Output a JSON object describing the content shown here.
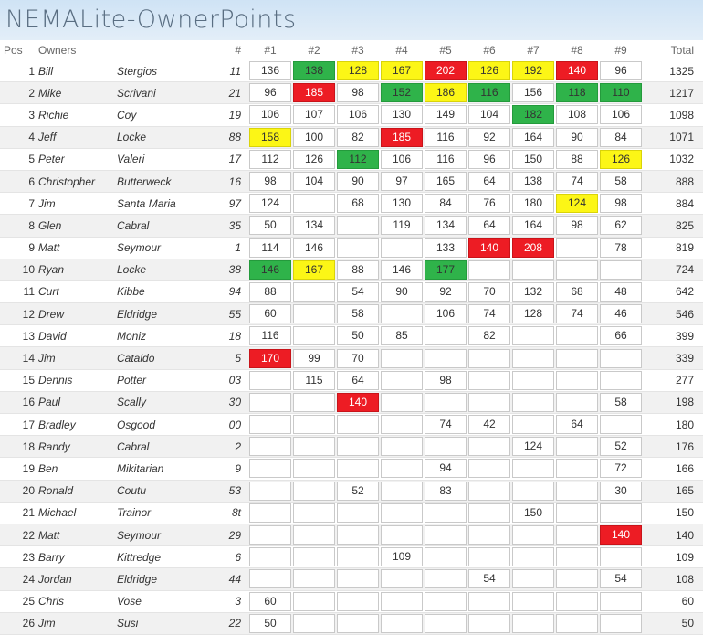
{
  "title": "NEMALite-OwnerPoints",
  "headers": {
    "pos": "Pos",
    "owners": "Owners",
    "num": "#",
    "races": [
      "#1",
      "#2",
      "#3",
      "#4",
      "#5",
      "#6",
      "#7",
      "#8",
      "#9"
    ],
    "total": "Total"
  },
  "colors": {
    "green": "#2fb34a",
    "yellow": "#fcf616",
    "red": "#ed1c24"
  },
  "rows": [
    {
      "pos": "1",
      "first": "Bill",
      "last": "Stergios",
      "num": "11",
      "races": [
        {
          "v": "136"
        },
        {
          "v": "138",
          "c": "green"
        },
        {
          "v": "128",
          "c": "yellow"
        },
        {
          "v": "167",
          "c": "yellow"
        },
        {
          "v": "202",
          "c": "red"
        },
        {
          "v": "126",
          "c": "yellow"
        },
        {
          "v": "192",
          "c": "yellow"
        },
        {
          "v": "140",
          "c": "red"
        },
        {
          "v": "96"
        }
      ],
      "total": "1325"
    },
    {
      "pos": "2",
      "first": "Mike",
      "last": "Scrivani",
      "num": "21",
      "races": [
        {
          "v": "96"
        },
        {
          "v": "185",
          "c": "red"
        },
        {
          "v": "98"
        },
        {
          "v": "152",
          "c": "green"
        },
        {
          "v": "186",
          "c": "yellow"
        },
        {
          "v": "116",
          "c": "green"
        },
        {
          "v": "156"
        },
        {
          "v": "118",
          "c": "green"
        },
        {
          "v": "110",
          "c": "green"
        }
      ],
      "total": "1217"
    },
    {
      "pos": "3",
      "first": "Richie",
      "last": "Coy",
      "num": "19",
      "races": [
        {
          "v": "106"
        },
        {
          "v": "107"
        },
        {
          "v": "106"
        },
        {
          "v": "130"
        },
        {
          "v": "149"
        },
        {
          "v": "104"
        },
        {
          "v": "182",
          "c": "green"
        },
        {
          "v": "108"
        },
        {
          "v": "106"
        }
      ],
      "total": "1098"
    },
    {
      "pos": "4",
      "first": "Jeff",
      "last": "Locke",
      "num": "88",
      "races": [
        {
          "v": "158",
          "c": "yellow"
        },
        {
          "v": "100"
        },
        {
          "v": "82"
        },
        {
          "v": "185",
          "c": "red"
        },
        {
          "v": "116"
        },
        {
          "v": "92"
        },
        {
          "v": "164"
        },
        {
          "v": "90"
        },
        {
          "v": "84"
        }
      ],
      "total": "1071"
    },
    {
      "pos": "5",
      "first": "Peter",
      "last": "Valeri",
      "num": "17",
      "races": [
        {
          "v": "112"
        },
        {
          "v": "126"
        },
        {
          "v": "112",
          "c": "green"
        },
        {
          "v": "106"
        },
        {
          "v": "116"
        },
        {
          "v": "96"
        },
        {
          "v": "150"
        },
        {
          "v": "88"
        },
        {
          "v": "126",
          "c": "yellow"
        }
      ],
      "total": "1032"
    },
    {
      "pos": "6",
      "first": "Christopher",
      "last": "Butterweck",
      "num": "16",
      "races": [
        {
          "v": "98"
        },
        {
          "v": "104"
        },
        {
          "v": "90"
        },
        {
          "v": "97"
        },
        {
          "v": "165"
        },
        {
          "v": "64"
        },
        {
          "v": "138"
        },
        {
          "v": "74"
        },
        {
          "v": "58"
        }
      ],
      "total": "888"
    },
    {
      "pos": "7",
      "first": "Jim",
      "last": "Santa Maria",
      "num": "97",
      "races": [
        {
          "v": "124"
        },
        {
          "v": ""
        },
        {
          "v": "68"
        },
        {
          "v": "130"
        },
        {
          "v": "84"
        },
        {
          "v": "76"
        },
        {
          "v": "180"
        },
        {
          "v": "124",
          "c": "yellow"
        },
        {
          "v": "98"
        }
      ],
      "total": "884"
    },
    {
      "pos": "8",
      "first": "Glen",
      "last": "Cabral",
      "num": "35",
      "races": [
        {
          "v": "50"
        },
        {
          "v": "134"
        },
        {
          "v": ""
        },
        {
          "v": "119"
        },
        {
          "v": "134"
        },
        {
          "v": "64"
        },
        {
          "v": "164"
        },
        {
          "v": "98"
        },
        {
          "v": "62"
        }
      ],
      "total": "825"
    },
    {
      "pos": "9",
      "first": "Matt",
      "last": "Seymour",
      "num": "1",
      "races": [
        {
          "v": "114"
        },
        {
          "v": "146"
        },
        {
          "v": ""
        },
        {
          "v": ""
        },
        {
          "v": "133"
        },
        {
          "v": "140",
          "c": "red"
        },
        {
          "v": "208",
          "c": "red"
        },
        {
          "v": ""
        },
        {
          "v": "78"
        }
      ],
      "total": "819"
    },
    {
      "pos": "10",
      "first": "Ryan",
      "last": "Locke",
      "num": "38",
      "races": [
        {
          "v": "146",
          "c": "green"
        },
        {
          "v": "167",
          "c": "yellow"
        },
        {
          "v": "88"
        },
        {
          "v": "146"
        },
        {
          "v": "177",
          "c": "green"
        },
        {
          "v": ""
        },
        {
          "v": ""
        },
        {
          "v": ""
        },
        {
          "v": ""
        }
      ],
      "total": "724"
    },
    {
      "pos": "11",
      "first": "Curt",
      "last": "Kibbe",
      "num": "94",
      "races": [
        {
          "v": "88"
        },
        {
          "v": ""
        },
        {
          "v": "54"
        },
        {
          "v": "90"
        },
        {
          "v": "92"
        },
        {
          "v": "70"
        },
        {
          "v": "132"
        },
        {
          "v": "68"
        },
        {
          "v": "48"
        }
      ],
      "total": "642"
    },
    {
      "pos": "12",
      "first": "Drew",
      "last": "Eldridge",
      "num": "55",
      "races": [
        {
          "v": "60"
        },
        {
          "v": ""
        },
        {
          "v": "58"
        },
        {
          "v": ""
        },
        {
          "v": "106"
        },
        {
          "v": "74"
        },
        {
          "v": "128"
        },
        {
          "v": "74"
        },
        {
          "v": "46"
        }
      ],
      "total": "546"
    },
    {
      "pos": "13",
      "first": "David",
      "last": "Moniz",
      "num": "18",
      "races": [
        {
          "v": "116"
        },
        {
          "v": ""
        },
        {
          "v": "50"
        },
        {
          "v": "85"
        },
        {
          "v": ""
        },
        {
          "v": "82"
        },
        {
          "v": ""
        },
        {
          "v": ""
        },
        {
          "v": "66"
        }
      ],
      "total": "399"
    },
    {
      "pos": "14",
      "first": "Jim",
      "last": "Cataldo",
      "num": "5",
      "races": [
        {
          "v": "170",
          "c": "red"
        },
        {
          "v": "99"
        },
        {
          "v": "70"
        },
        {
          "v": ""
        },
        {
          "v": ""
        },
        {
          "v": ""
        },
        {
          "v": ""
        },
        {
          "v": ""
        },
        {
          "v": ""
        }
      ],
      "total": "339"
    },
    {
      "pos": "15",
      "first": "Dennis",
      "last": "Potter",
      "num": "03",
      "races": [
        {
          "v": ""
        },
        {
          "v": "115"
        },
        {
          "v": "64"
        },
        {
          "v": ""
        },
        {
          "v": "98"
        },
        {
          "v": ""
        },
        {
          "v": ""
        },
        {
          "v": ""
        },
        {
          "v": ""
        }
      ],
      "total": "277"
    },
    {
      "pos": "16",
      "first": "Paul",
      "last": "Scally",
      "num": "30",
      "races": [
        {
          "v": ""
        },
        {
          "v": ""
        },
        {
          "v": "140",
          "c": "red"
        },
        {
          "v": ""
        },
        {
          "v": ""
        },
        {
          "v": ""
        },
        {
          "v": ""
        },
        {
          "v": ""
        },
        {
          "v": "58"
        }
      ],
      "total": "198"
    },
    {
      "pos": "17",
      "first": "Bradley",
      "last": "Osgood",
      "num": "00",
      "races": [
        {
          "v": ""
        },
        {
          "v": ""
        },
        {
          "v": ""
        },
        {
          "v": ""
        },
        {
          "v": "74"
        },
        {
          "v": "42"
        },
        {
          "v": ""
        },
        {
          "v": "64"
        },
        {
          "v": ""
        }
      ],
      "total": "180"
    },
    {
      "pos": "18",
      "first": "Randy",
      "last": "Cabral",
      "num": "2",
      "races": [
        {
          "v": ""
        },
        {
          "v": ""
        },
        {
          "v": ""
        },
        {
          "v": ""
        },
        {
          "v": ""
        },
        {
          "v": ""
        },
        {
          "v": "124"
        },
        {
          "v": ""
        },
        {
          "v": "52"
        }
      ],
      "total": "176"
    },
    {
      "pos": "19",
      "first": "Ben",
      "last": "Mikitarian",
      "num": "9",
      "races": [
        {
          "v": ""
        },
        {
          "v": ""
        },
        {
          "v": ""
        },
        {
          "v": ""
        },
        {
          "v": "94"
        },
        {
          "v": ""
        },
        {
          "v": ""
        },
        {
          "v": ""
        },
        {
          "v": "72"
        }
      ],
      "total": "166"
    },
    {
      "pos": "20",
      "first": "Ronald",
      "last": "Coutu",
      "num": "53",
      "races": [
        {
          "v": ""
        },
        {
          "v": ""
        },
        {
          "v": "52"
        },
        {
          "v": ""
        },
        {
          "v": "83"
        },
        {
          "v": ""
        },
        {
          "v": ""
        },
        {
          "v": ""
        },
        {
          "v": "30"
        }
      ],
      "total": "165"
    },
    {
      "pos": "21",
      "first": "Michael",
      "last": "Trainor",
      "num": "8t",
      "races": [
        {
          "v": ""
        },
        {
          "v": ""
        },
        {
          "v": ""
        },
        {
          "v": ""
        },
        {
          "v": ""
        },
        {
          "v": ""
        },
        {
          "v": "150"
        },
        {
          "v": ""
        },
        {
          "v": ""
        }
      ],
      "total": "150"
    },
    {
      "pos": "22",
      "first": "Matt",
      "last": "Seymour",
      "num": "29",
      "races": [
        {
          "v": ""
        },
        {
          "v": ""
        },
        {
          "v": ""
        },
        {
          "v": ""
        },
        {
          "v": ""
        },
        {
          "v": ""
        },
        {
          "v": ""
        },
        {
          "v": ""
        },
        {
          "v": "140",
          "c": "red"
        }
      ],
      "total": "140"
    },
    {
      "pos": "23",
      "first": "Barry",
      "last": "Kittredge",
      "num": "6",
      "races": [
        {
          "v": ""
        },
        {
          "v": ""
        },
        {
          "v": ""
        },
        {
          "v": "109"
        },
        {
          "v": ""
        },
        {
          "v": ""
        },
        {
          "v": ""
        },
        {
          "v": ""
        },
        {
          "v": ""
        }
      ],
      "total": "109"
    },
    {
      "pos": "24",
      "first": "Jordan",
      "last": "Eldridge",
      "num": "44",
      "races": [
        {
          "v": ""
        },
        {
          "v": ""
        },
        {
          "v": ""
        },
        {
          "v": ""
        },
        {
          "v": ""
        },
        {
          "v": "54"
        },
        {
          "v": ""
        },
        {
          "v": ""
        },
        {
          "v": "54"
        }
      ],
      "total": "108"
    },
    {
      "pos": "25",
      "first": "Chris",
      "last": "Vose",
      "num": "3",
      "races": [
        {
          "v": "60"
        },
        {
          "v": ""
        },
        {
          "v": ""
        },
        {
          "v": ""
        },
        {
          "v": ""
        },
        {
          "v": ""
        },
        {
          "v": ""
        },
        {
          "v": ""
        },
        {
          "v": ""
        }
      ],
      "total": "60"
    },
    {
      "pos": "26",
      "first": "Jim",
      "last": "Susi",
      "num": "22",
      "races": [
        {
          "v": "50"
        },
        {
          "v": ""
        },
        {
          "v": ""
        },
        {
          "v": ""
        },
        {
          "v": ""
        },
        {
          "v": ""
        },
        {
          "v": ""
        },
        {
          "v": ""
        },
        {
          "v": ""
        }
      ],
      "total": "50"
    }
  ]
}
